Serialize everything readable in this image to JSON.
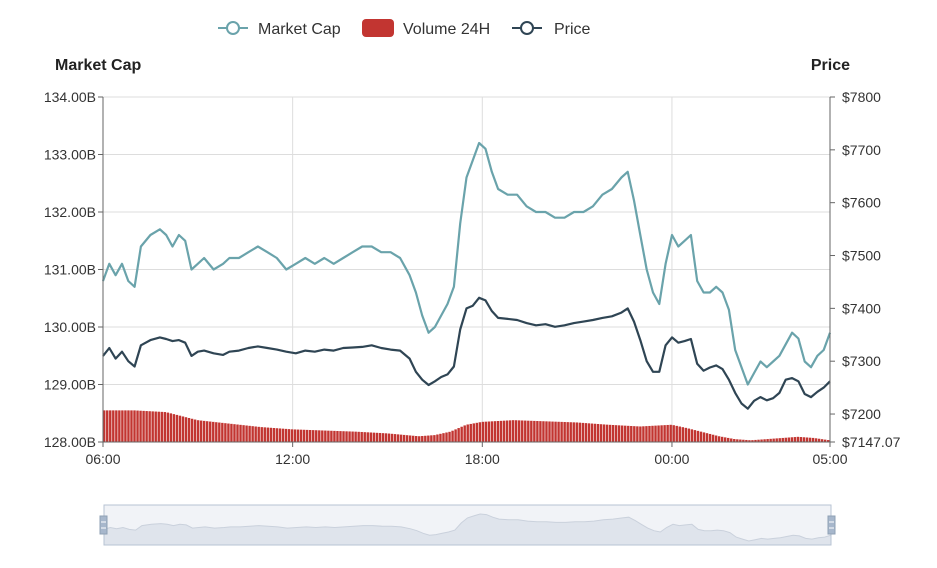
{
  "colors": {
    "market_cap": "#6aa3ab",
    "volume": "#c23531",
    "price": "#2f4554",
    "grid": "#dddddd",
    "axis": "#666666",
    "zoom_fill": "#d6dde8",
    "zoom_border": "#b7c3d3"
  },
  "chart_data": {
    "type": "line",
    "legend": {
      "position": "top-center",
      "items": [
        {
          "name": "Market Cap",
          "icon": "line-circle-icon"
        },
        {
          "name": "Volume 24H",
          "icon": "rounded-rect-icon"
        },
        {
          "name": "Price",
          "icon": "line-circle-icon"
        }
      ]
    },
    "y_left": {
      "title": "Market Cap",
      "ticks": [
        "128.00B",
        "129.00B",
        "130.00B",
        "131.00B",
        "132.00B",
        "133.00B",
        "134.00B"
      ],
      "range": [
        128,
        134
      ]
    },
    "y_right": {
      "title": "Price",
      "ticks": [
        "$7147.07",
        "$7200",
        "$7300",
        "$7400",
        "$7500",
        "$7600",
        "$7700",
        "$7800"
      ],
      "range": [
        7147.07,
        7800
      ]
    },
    "x": {
      "ticks": [
        "06:00",
        "12:00",
        "18:00",
        "00:00",
        "05:00"
      ],
      "range_hours": [
        6,
        29
      ]
    },
    "grid": true,
    "data_zoom": {
      "visible": true,
      "start": 0,
      "end": 100
    },
    "series": [
      {
        "name": "Market Cap",
        "type": "line",
        "axis": "left",
        "points": [
          [
            6.0,
            130.8
          ],
          [
            6.2,
            131.1
          ],
          [
            6.4,
            130.9
          ],
          [
            6.6,
            131.1
          ],
          [
            6.8,
            130.8
          ],
          [
            7.0,
            130.7
          ],
          [
            7.2,
            131.4
          ],
          [
            7.5,
            131.6
          ],
          [
            7.8,
            131.7
          ],
          [
            8.0,
            131.6
          ],
          [
            8.2,
            131.4
          ],
          [
            8.4,
            131.6
          ],
          [
            8.6,
            131.5
          ],
          [
            8.8,
            131.0
          ],
          [
            9.0,
            131.1
          ],
          [
            9.2,
            131.2
          ],
          [
            9.5,
            131.0
          ],
          [
            9.8,
            131.1
          ],
          [
            10.0,
            131.2
          ],
          [
            10.3,
            131.2
          ],
          [
            10.6,
            131.3
          ],
          [
            10.9,
            131.4
          ],
          [
            11.2,
            131.3
          ],
          [
            11.5,
            131.2
          ],
          [
            11.8,
            131.0
          ],
          [
            12.1,
            131.1
          ],
          [
            12.4,
            131.2
          ],
          [
            12.7,
            131.1
          ],
          [
            13.0,
            131.2
          ],
          [
            13.3,
            131.1
          ],
          [
            13.6,
            131.2
          ],
          [
            13.9,
            131.3
          ],
          [
            14.2,
            131.4
          ],
          [
            14.5,
            131.4
          ],
          [
            14.8,
            131.3
          ],
          [
            15.1,
            131.3
          ],
          [
            15.4,
            131.2
          ],
          [
            15.7,
            130.9
          ],
          [
            15.9,
            130.6
          ],
          [
            16.1,
            130.2
          ],
          [
            16.3,
            129.9
          ],
          [
            16.5,
            130.0
          ],
          [
            16.7,
            130.2
          ],
          [
            16.9,
            130.4
          ],
          [
            17.1,
            130.7
          ],
          [
            17.3,
            131.8
          ],
          [
            17.5,
            132.6
          ],
          [
            17.7,
            132.9
          ],
          [
            17.9,
            133.2
          ],
          [
            18.1,
            133.1
          ],
          [
            18.3,
            132.7
          ],
          [
            18.5,
            132.4
          ],
          [
            18.8,
            132.3
          ],
          [
            19.1,
            132.3
          ],
          [
            19.4,
            132.1
          ],
          [
            19.7,
            132.0
          ],
          [
            20.0,
            132.0
          ],
          [
            20.3,
            131.9
          ],
          [
            20.6,
            131.9
          ],
          [
            20.9,
            132.0
          ],
          [
            21.2,
            132.0
          ],
          [
            21.5,
            132.1
          ],
          [
            21.8,
            132.3
          ],
          [
            22.1,
            132.4
          ],
          [
            22.4,
            132.6
          ],
          [
            22.6,
            132.7
          ],
          [
            22.8,
            132.2
          ],
          [
            23.0,
            131.6
          ],
          [
            23.2,
            131.0
          ],
          [
            23.4,
            130.6
          ],
          [
            23.6,
            130.4
          ],
          [
            23.8,
            131.1
          ],
          [
            24.0,
            131.6
          ],
          [
            24.2,
            131.4
          ],
          [
            24.4,
            131.5
          ],
          [
            24.6,
            131.6
          ],
          [
            24.8,
            130.8
          ],
          [
            25.0,
            130.6
          ],
          [
            25.2,
            130.6
          ],
          [
            25.4,
            130.7
          ],
          [
            25.6,
            130.6
          ],
          [
            25.8,
            130.3
          ],
          [
            26.0,
            129.6
          ],
          [
            26.2,
            129.3
          ],
          [
            26.4,
            129.0
          ],
          [
            26.6,
            129.2
          ],
          [
            26.8,
            129.4
          ],
          [
            27.0,
            129.3
          ],
          [
            27.2,
            129.4
          ],
          [
            27.4,
            129.5
          ],
          [
            27.6,
            129.7
          ],
          [
            27.8,
            129.9
          ],
          [
            28.0,
            129.8
          ],
          [
            28.2,
            129.4
          ],
          [
            28.4,
            129.3
          ],
          [
            28.6,
            129.5
          ],
          [
            28.8,
            129.6
          ],
          [
            29.0,
            129.9
          ]
        ]
      },
      {
        "name": "Price",
        "type": "line",
        "axis": "right",
        "points": [
          [
            6.0,
            7310
          ],
          [
            6.2,
            7325
          ],
          [
            6.4,
            7305
          ],
          [
            6.6,
            7318
          ],
          [
            6.8,
            7300
          ],
          [
            7.0,
            7290
          ],
          [
            7.2,
            7330
          ],
          [
            7.5,
            7340
          ],
          [
            7.8,
            7345
          ],
          [
            8.0,
            7342
          ],
          [
            8.2,
            7338
          ],
          [
            8.4,
            7340
          ],
          [
            8.6,
            7335
          ],
          [
            8.8,
            7310
          ],
          [
            9.0,
            7318
          ],
          [
            9.2,
            7320
          ],
          [
            9.5,
            7315
          ],
          [
            9.8,
            7312
          ],
          [
            10.0,
            7318
          ],
          [
            10.3,
            7320
          ],
          [
            10.6,
            7325
          ],
          [
            10.9,
            7328
          ],
          [
            11.2,
            7325
          ],
          [
            11.5,
            7322
          ],
          [
            11.8,
            7318
          ],
          [
            12.1,
            7315
          ],
          [
            12.4,
            7320
          ],
          [
            12.7,
            7318
          ],
          [
            13.0,
            7322
          ],
          [
            13.3,
            7320
          ],
          [
            13.6,
            7325
          ],
          [
            13.9,
            7326
          ],
          [
            14.2,
            7327
          ],
          [
            14.5,
            7330
          ],
          [
            14.8,
            7325
          ],
          [
            15.1,
            7322
          ],
          [
            15.4,
            7320
          ],
          [
            15.7,
            7305
          ],
          [
            15.9,
            7280
          ],
          [
            16.1,
            7265
          ],
          [
            16.3,
            7255
          ],
          [
            16.5,
            7262
          ],
          [
            16.7,
            7270
          ],
          [
            16.9,
            7275
          ],
          [
            17.1,
            7290
          ],
          [
            17.3,
            7360
          ],
          [
            17.5,
            7400
          ],
          [
            17.7,
            7405
          ],
          [
            17.9,
            7420
          ],
          [
            18.1,
            7415
          ],
          [
            18.3,
            7395
          ],
          [
            18.5,
            7382
          ],
          [
            18.8,
            7380
          ],
          [
            19.1,
            7378
          ],
          [
            19.4,
            7372
          ],
          [
            19.7,
            7368
          ],
          [
            20.0,
            7370
          ],
          [
            20.3,
            7365
          ],
          [
            20.6,
            7368
          ],
          [
            20.9,
            7372
          ],
          [
            21.2,
            7375
          ],
          [
            21.5,
            7378
          ],
          [
            21.8,
            7382
          ],
          [
            22.1,
            7385
          ],
          [
            22.4,
            7392
          ],
          [
            22.6,
            7400
          ],
          [
            22.8,
            7375
          ],
          [
            23.0,
            7340
          ],
          [
            23.2,
            7300
          ],
          [
            23.4,
            7280
          ],
          [
            23.6,
            7280
          ],
          [
            23.8,
            7330
          ],
          [
            24.0,
            7345
          ],
          [
            24.2,
            7335
          ],
          [
            24.4,
            7338
          ],
          [
            24.6,
            7342
          ],
          [
            24.8,
            7295
          ],
          [
            25.0,
            7282
          ],
          [
            25.2,
            7288
          ],
          [
            25.4,
            7292
          ],
          [
            25.6,
            7285
          ],
          [
            25.8,
            7265
          ],
          [
            26.0,
            7240
          ],
          [
            26.2,
            7220
          ],
          [
            26.4,
            7210
          ],
          [
            26.6,
            7225
          ],
          [
            26.8,
            7232
          ],
          [
            27.0,
            7226
          ],
          [
            27.2,
            7230
          ],
          [
            27.4,
            7240
          ],
          [
            27.6,
            7265
          ],
          [
            27.8,
            7268
          ],
          [
            28.0,
            7262
          ],
          [
            28.2,
            7238
          ],
          [
            28.4,
            7232
          ],
          [
            28.6,
            7242
          ],
          [
            28.8,
            7250
          ],
          [
            29.0,
            7262
          ]
        ]
      },
      {
        "name": "Volume 24H",
        "type": "bar",
        "axis": "left",
        "points": [
          [
            6.0,
            128.55
          ],
          [
            7.0,
            128.55
          ],
          [
            8.0,
            128.52
          ],
          [
            8.5,
            128.45
          ],
          [
            9.0,
            128.38
          ],
          [
            10.0,
            128.32
          ],
          [
            11.0,
            128.26
          ],
          [
            12.0,
            128.22
          ],
          [
            13.0,
            128.2
          ],
          [
            14.0,
            128.18
          ],
          [
            15.0,
            128.15
          ],
          [
            16.0,
            128.1
          ],
          [
            16.5,
            128.12
          ],
          [
            17.0,
            128.18
          ],
          [
            17.5,
            128.3
          ],
          [
            18.0,
            128.35
          ],
          [
            19.0,
            128.38
          ],
          [
            20.0,
            128.36
          ],
          [
            21.0,
            128.34
          ],
          [
            22.0,
            128.3
          ],
          [
            23.0,
            128.27
          ],
          [
            24.0,
            128.3
          ],
          [
            24.5,
            128.24
          ],
          [
            25.0,
            128.17
          ],
          [
            25.5,
            128.1
          ],
          [
            26.0,
            128.05
          ],
          [
            26.5,
            128.03
          ],
          [
            27.0,
            128.05
          ],
          [
            27.5,
            128.07
          ],
          [
            28.0,
            128.09
          ],
          [
            28.5,
            128.07
          ],
          [
            29.0,
            128.03
          ]
        ]
      }
    ]
  }
}
